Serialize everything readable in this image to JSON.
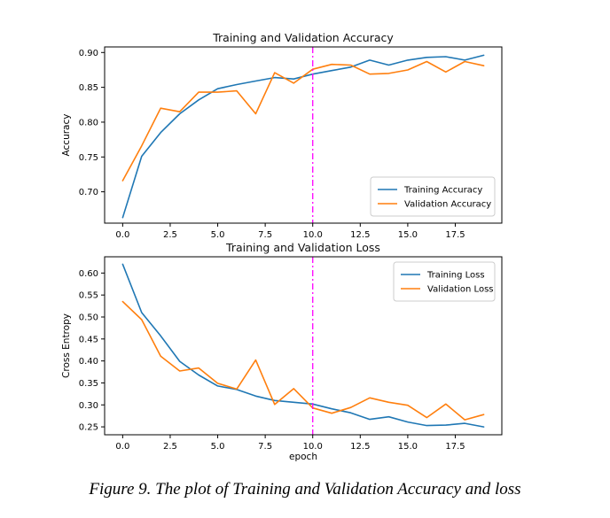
{
  "caption": "Figure 9. The plot of Training and Validation Accuracy and loss",
  "colors": {
    "training": "#1f77b4",
    "validation": "#ff7f0e",
    "marker_line": "#ff00ff"
  },
  "chart_data": [
    {
      "type": "line",
      "title": "Training and Validation Accuracy",
      "xlabel": "",
      "ylabel": "Accuracy",
      "xlim": [
        -0.95,
        19.95
      ],
      "ylim": [
        0.655,
        0.908
      ],
      "xticks": [
        0.0,
        2.5,
        5.0,
        7.5,
        10.0,
        12.5,
        15.0,
        17.5
      ],
      "xtick_labels": [
        "0.0",
        "2.5",
        "5.0",
        "7.5",
        "10.0",
        "12.5",
        "15.0",
        "17.5"
      ],
      "yticks": [
        0.7,
        0.75,
        0.8,
        0.85,
        0.9
      ],
      "ytick_labels": [
        "0.70",
        "0.75",
        "0.80",
        "0.85",
        "0.90"
      ],
      "legend_position": "lower-right",
      "vline_x": 10,
      "x": [
        0,
        1,
        2,
        3,
        4,
        5,
        6,
        7,
        8,
        9,
        10,
        11,
        12,
        13,
        14,
        15,
        16,
        17,
        18,
        19
      ],
      "series": [
        {
          "name": "Training Accuracy",
          "values": [
            0.663,
            0.751,
            0.785,
            0.812,
            0.832,
            0.848,
            0.854,
            0.859,
            0.864,
            0.862,
            0.869,
            0.874,
            0.879,
            0.889,
            0.882,
            0.889,
            0.893,
            0.894,
            0.889,
            0.896
          ]
        },
        {
          "name": "Validation Accuracy",
          "values": [
            0.716,
            0.766,
            0.82,
            0.815,
            0.843,
            0.843,
            0.845,
            0.812,
            0.871,
            0.856,
            0.876,
            0.883,
            0.882,
            0.869,
            0.87,
            0.875,
            0.887,
            0.872,
            0.887,
            0.881
          ]
        }
      ]
    },
    {
      "type": "line",
      "title": "Training and Validation Loss",
      "xlabel": "epoch",
      "ylabel": "Cross Entropy",
      "xlim": [
        -0.95,
        19.95
      ],
      "ylim": [
        0.232,
        0.637
      ],
      "xticks": [
        0.0,
        2.5,
        5.0,
        7.5,
        10.0,
        12.5,
        15.0,
        17.5
      ],
      "xtick_labels": [
        "0.0",
        "2.5",
        "5.0",
        "7.5",
        "10.0",
        "12.5",
        "15.0",
        "17.5"
      ],
      "yticks": [
        0.25,
        0.3,
        0.35,
        0.4,
        0.45,
        0.5,
        0.55,
        0.6
      ],
      "ytick_labels": [
        "0.25",
        "0.30",
        "0.35",
        "0.40",
        "0.45",
        "0.50",
        "0.55",
        "0.60"
      ],
      "legend_position": "upper-right",
      "vline_x": 10,
      "x": [
        0,
        1,
        2,
        3,
        4,
        5,
        6,
        7,
        8,
        9,
        10,
        11,
        12,
        13,
        14,
        15,
        16,
        17,
        18,
        19
      ],
      "series": [
        {
          "name": "Training Loss",
          "values": [
            0.62,
            0.51,
            0.457,
            0.399,
            0.368,
            0.343,
            0.335,
            0.32,
            0.31,
            0.306,
            0.302,
            0.291,
            0.282,
            0.267,
            0.273,
            0.261,
            0.253,
            0.254,
            0.258,
            0.25
          ]
        },
        {
          "name": "Validation Loss",
          "values": [
            0.535,
            0.494,
            0.411,
            0.377,
            0.384,
            0.349,
            0.336,
            0.402,
            0.301,
            0.337,
            0.293,
            0.281,
            0.294,
            0.316,
            0.306,
            0.299,
            0.271,
            0.302,
            0.266,
            0.278
          ]
        }
      ]
    }
  ]
}
